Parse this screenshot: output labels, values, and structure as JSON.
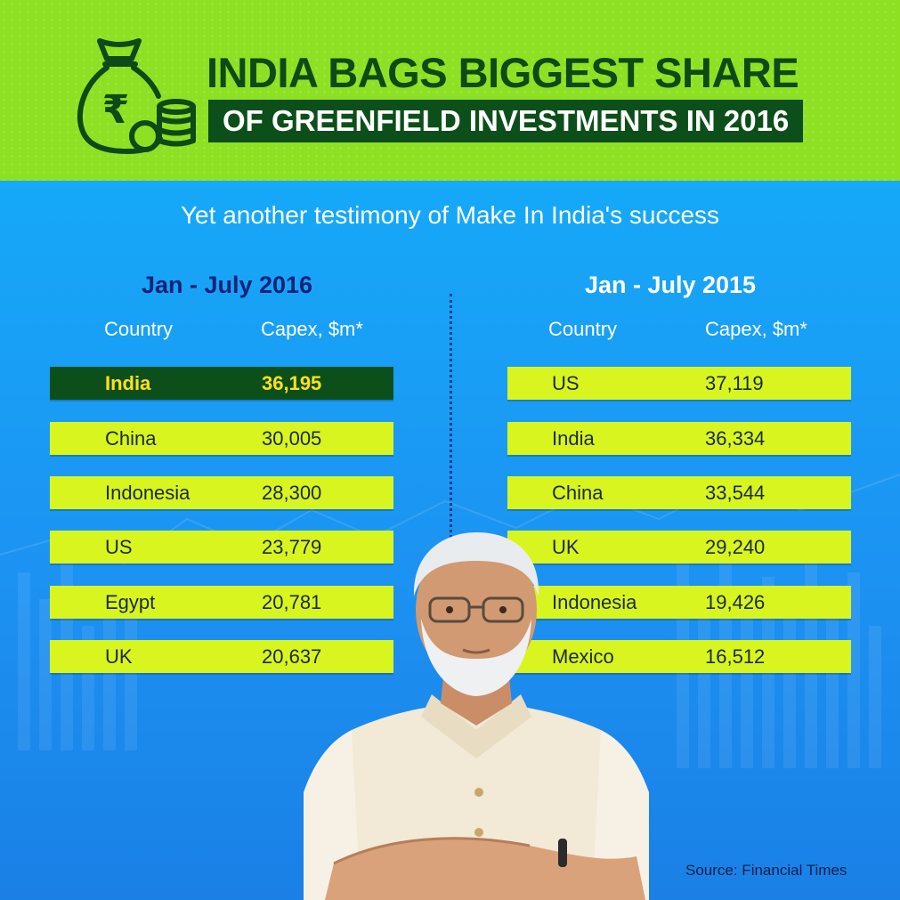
{
  "header": {
    "title_line1": "INDIA BAGS BIGGEST SHARE",
    "title_line2": "OF GREENFIELD INVESTMENTS IN 2016",
    "icon": "money-bag-rupee-icon",
    "icon_symbol": "₹"
  },
  "subtitle": "Yet another testimony of Make In India's success",
  "colors": {
    "header_bg": "#8ee023",
    "title_dark_green": "#0e4a17",
    "row_lime": "#d8f51f",
    "row_highlight": "#0d4f1a",
    "highlight_text": "#ffe11a",
    "main_blue": "#1a8ff5"
  },
  "chart_data": [
    {
      "type": "table",
      "title": "Jan - July 2016",
      "columns": [
        "Country",
        "Capex, $m*"
      ],
      "rows": [
        {
          "country": "India",
          "capex": "36,195",
          "highlight": true
        },
        {
          "country": "China",
          "capex": "30,005"
        },
        {
          "country": "Indonesia",
          "capex": "28,300"
        },
        {
          "country": "US",
          "capex": "23,779"
        },
        {
          "country": "Egypt",
          "capex": "20,781"
        },
        {
          "country": "UK",
          "capex": "20,637"
        }
      ]
    },
    {
      "type": "table",
      "title": "Jan - July 2015",
      "columns": [
        "Country",
        "Capex, $m*"
      ],
      "rows": [
        {
          "country": "US",
          "capex": "37,119"
        },
        {
          "country": "India",
          "capex": "36,334"
        },
        {
          "country": "China",
          "capex": "33,544"
        },
        {
          "country": "UK",
          "capex": "29,240"
        },
        {
          "country": "Indonesia",
          "capex": "19,426"
        },
        {
          "country": "Mexico",
          "capex": "16,512"
        }
      ]
    }
  ],
  "source": "Source: Financial Times"
}
